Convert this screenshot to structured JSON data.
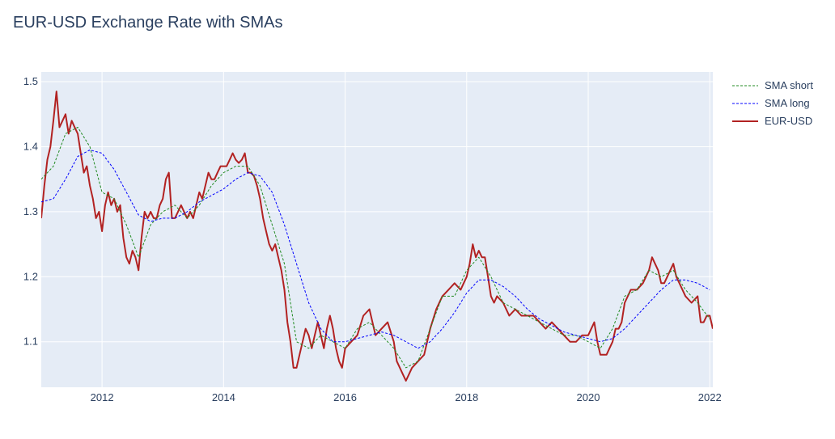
{
  "chart_data": {
    "type": "line",
    "title": "EUR-USD Exchange Rate with SMAs",
    "xlabel": "",
    "ylabel": "",
    "xlim": [
      2011.0,
      2022.05
    ],
    "ylim": [
      1.03,
      1.515
    ],
    "x_ticks": [
      2012,
      2014,
      2016,
      2018,
      2020,
      2022
    ],
    "y_ticks": [
      1.1,
      1.2,
      1.3,
      1.4,
      1.5
    ],
    "x_tick_labels": [
      "2012",
      "2014",
      "2016",
      "2018",
      "2020",
      "2022"
    ],
    "y_tick_labels": [
      "1.1",
      "1.2",
      "1.3",
      "1.4",
      "1.5"
    ],
    "grid": true,
    "legend_position": "top-right",
    "series": [
      {
        "name": "SMA short",
        "color": "#228b22",
        "dash": "dash",
        "x": [
          2011.0,
          2011.2,
          2011.4,
          2011.6,
          2011.8,
          2012.0,
          2012.2,
          2012.4,
          2012.6,
          2012.8,
          2013.0,
          2013.2,
          2013.4,
          2013.6,
          2013.8,
          2014.0,
          2014.2,
          2014.4,
          2014.6,
          2014.8,
          2015.0,
          2015.2,
          2015.4,
          2015.6,
          2015.8,
          2016.0,
          2016.2,
          2016.4,
          2016.6,
          2016.8,
          2017.0,
          2017.2,
          2017.4,
          2017.6,
          2017.8,
          2018.0,
          2018.2,
          2018.4,
          2018.6,
          2018.8,
          2019.0,
          2019.2,
          2019.4,
          2019.6,
          2019.8,
          2020.0,
          2020.2,
          2020.4,
          2020.6,
          2020.8,
          2021.0,
          2021.2,
          2021.4,
          2021.6,
          2021.8,
          2022.0
        ],
        "y": [
          1.35,
          1.37,
          1.42,
          1.43,
          1.4,
          1.33,
          1.32,
          1.28,
          1.23,
          1.28,
          1.3,
          1.31,
          1.29,
          1.31,
          1.34,
          1.36,
          1.37,
          1.37,
          1.34,
          1.28,
          1.22,
          1.1,
          1.09,
          1.11,
          1.1,
          1.09,
          1.12,
          1.13,
          1.11,
          1.09,
          1.06,
          1.07,
          1.12,
          1.17,
          1.17,
          1.21,
          1.23,
          1.2,
          1.16,
          1.15,
          1.14,
          1.13,
          1.12,
          1.11,
          1.11,
          1.1,
          1.09,
          1.12,
          1.17,
          1.18,
          1.21,
          1.2,
          1.21,
          1.18,
          1.16,
          1.135
        ]
      },
      {
        "name": "SMA long",
        "color": "#0000ff",
        "dash": "dash",
        "x": [
          2011.0,
          2011.2,
          2011.4,
          2011.6,
          2011.8,
          2012.0,
          2012.2,
          2012.4,
          2012.6,
          2012.8,
          2013.0,
          2013.2,
          2013.4,
          2013.6,
          2013.8,
          2014.0,
          2014.2,
          2014.4,
          2014.6,
          2014.8,
          2015.0,
          2015.2,
          2015.4,
          2015.6,
          2015.8,
          2016.0,
          2016.2,
          2016.4,
          2016.6,
          2016.8,
          2017.0,
          2017.2,
          2017.4,
          2017.6,
          2017.8,
          2018.0,
          2018.2,
          2018.4,
          2018.6,
          2018.8,
          2019.0,
          2019.2,
          2019.4,
          2019.6,
          2019.8,
          2020.0,
          2020.2,
          2020.4,
          2020.6,
          2020.8,
          2021.0,
          2021.2,
          2021.4,
          2021.6,
          2021.8,
          2022.0
        ],
        "y": [
          1.315,
          1.32,
          1.35,
          1.385,
          1.395,
          1.39,
          1.365,
          1.33,
          1.295,
          1.285,
          1.29,
          1.29,
          1.3,
          1.315,
          1.325,
          1.335,
          1.35,
          1.36,
          1.355,
          1.33,
          1.28,
          1.22,
          1.16,
          1.12,
          1.1,
          1.1,
          1.105,
          1.11,
          1.115,
          1.11,
          1.1,
          1.09,
          1.1,
          1.12,
          1.145,
          1.175,
          1.195,
          1.195,
          1.185,
          1.17,
          1.15,
          1.135,
          1.125,
          1.115,
          1.11,
          1.105,
          1.1,
          1.105,
          1.12,
          1.14,
          1.16,
          1.18,
          1.195,
          1.195,
          1.19,
          1.18
        ]
      },
      {
        "name": "EUR-USD",
        "color": "#b22222",
        "dash": "solid",
        "x": [
          2011.0,
          2011.05,
          2011.1,
          2011.15,
          2011.2,
          2011.25,
          2011.3,
          2011.35,
          2011.4,
          2011.45,
          2011.5,
          2011.55,
          2011.6,
          2011.65,
          2011.7,
          2011.75,
          2011.8,
          2011.85,
          2011.9,
          2011.95,
          2012.0,
          2012.05,
          2012.1,
          2012.15,
          2012.2,
          2012.25,
          2012.3,
          2012.35,
          2012.4,
          2012.45,
          2012.5,
          2012.55,
          2012.6,
          2012.65,
          2012.7,
          2012.75,
          2012.8,
          2012.85,
          2012.9,
          2012.95,
          2013.0,
          2013.05,
          2013.1,
          2013.15,
          2013.2,
          2013.25,
          2013.3,
          2013.35,
          2013.4,
          2013.45,
          2013.5,
          2013.55,
          2013.6,
          2013.65,
          2013.7,
          2013.75,
          2013.8,
          2013.85,
          2013.9,
          2013.95,
          2014.0,
          2014.05,
          2014.1,
          2014.15,
          2014.2,
          2014.25,
          2014.3,
          2014.35,
          2014.4,
          2014.45,
          2014.5,
          2014.55,
          2014.6,
          2014.65,
          2014.7,
          2014.75,
          2014.8,
          2014.85,
          2014.9,
          2014.95,
          2015.0,
          2015.05,
          2015.1,
          2015.15,
          2015.2,
          2015.25,
          2015.3,
          2015.35,
          2015.4,
          2015.45,
          2015.5,
          2015.55,
          2015.6,
          2015.65,
          2015.7,
          2015.75,
          2015.8,
          2015.85,
          2015.9,
          2015.95,
          2016.0,
          2016.1,
          2016.2,
          2016.3,
          2016.4,
          2016.5,
          2016.6,
          2016.7,
          2016.8,
          2016.85,
          2016.9,
          2016.95,
          2017.0,
          2017.1,
          2017.2,
          2017.3,
          2017.4,
          2017.5,
          2017.6,
          2017.7,
          2017.8,
          2017.9,
          2018.0,
          2018.05,
          2018.1,
          2018.15,
          2018.2,
          2018.25,
          2018.3,
          2018.35,
          2018.4,
          2018.45,
          2018.5,
          2018.6,
          2018.7,
          2018.8,
          2018.9,
          2019.0,
          2019.1,
          2019.2,
          2019.3,
          2019.4,
          2019.5,
          2019.6,
          2019.7,
          2019.8,
          2019.9,
          2020.0,
          2020.1,
          2020.15,
          2020.2,
          2020.25,
          2020.3,
          2020.35,
          2020.4,
          2020.45,
          2020.5,
          2020.55,
          2020.6,
          2020.7,
          2020.8,
          2020.9,
          2021.0,
          2021.05,
          2021.1,
          2021.15,
          2021.2,
          2021.25,
          2021.3,
          2021.35,
          2021.4,
          2021.45,
          2021.5,
          2021.6,
          2021.7,
          2021.8,
          2021.85,
          2021.9,
          2021.95,
          2022.0,
          2022.05
        ],
        "y": [
          1.29,
          1.34,
          1.38,
          1.4,
          1.44,
          1.485,
          1.43,
          1.44,
          1.45,
          1.42,
          1.44,
          1.43,
          1.42,
          1.39,
          1.36,
          1.37,
          1.34,
          1.32,
          1.29,
          1.3,
          1.27,
          1.31,
          1.33,
          1.31,
          1.32,
          1.3,
          1.31,
          1.26,
          1.23,
          1.22,
          1.24,
          1.23,
          1.21,
          1.26,
          1.3,
          1.29,
          1.3,
          1.29,
          1.29,
          1.31,
          1.32,
          1.35,
          1.36,
          1.29,
          1.29,
          1.3,
          1.31,
          1.3,
          1.29,
          1.3,
          1.29,
          1.31,
          1.33,
          1.32,
          1.34,
          1.36,
          1.35,
          1.35,
          1.36,
          1.37,
          1.37,
          1.37,
          1.38,
          1.39,
          1.38,
          1.375,
          1.38,
          1.39,
          1.36,
          1.36,
          1.355,
          1.34,
          1.32,
          1.29,
          1.27,
          1.25,
          1.24,
          1.25,
          1.23,
          1.21,
          1.18,
          1.13,
          1.1,
          1.06,
          1.06,
          1.08,
          1.1,
          1.12,
          1.11,
          1.09,
          1.11,
          1.13,
          1.11,
          1.09,
          1.12,
          1.14,
          1.12,
          1.09,
          1.07,
          1.06,
          1.09,
          1.1,
          1.11,
          1.14,
          1.15,
          1.11,
          1.12,
          1.13,
          1.1,
          1.07,
          1.06,
          1.05,
          1.04,
          1.06,
          1.07,
          1.08,
          1.12,
          1.15,
          1.17,
          1.18,
          1.19,
          1.18,
          1.2,
          1.22,
          1.25,
          1.23,
          1.24,
          1.23,
          1.23,
          1.2,
          1.17,
          1.16,
          1.17,
          1.16,
          1.14,
          1.15,
          1.14,
          1.14,
          1.14,
          1.13,
          1.12,
          1.13,
          1.12,
          1.11,
          1.1,
          1.1,
          1.11,
          1.11,
          1.13,
          1.1,
          1.08,
          1.08,
          1.08,
          1.09,
          1.1,
          1.12,
          1.12,
          1.13,
          1.16,
          1.18,
          1.18,
          1.19,
          1.21,
          1.23,
          1.22,
          1.21,
          1.19,
          1.19,
          1.2,
          1.21,
          1.22,
          1.2,
          1.19,
          1.17,
          1.16,
          1.17,
          1.13,
          1.13,
          1.14,
          1.14,
          1.12
        ]
      }
    ]
  }
}
